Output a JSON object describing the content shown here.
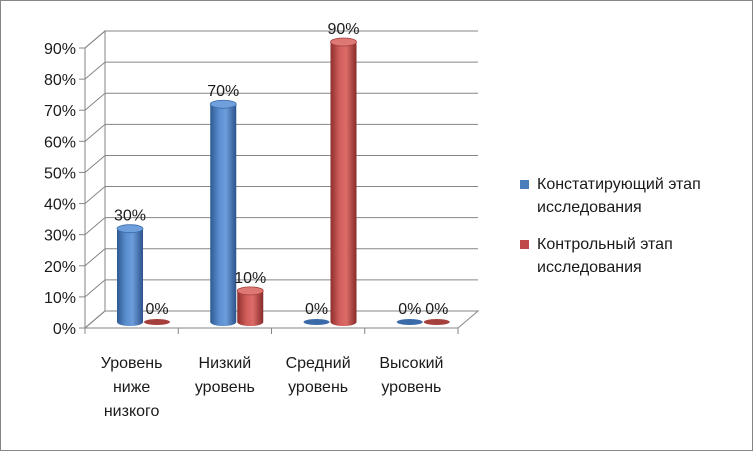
{
  "chart_data": {
    "type": "bar",
    "title": "",
    "xlabel": "",
    "ylabel": "",
    "ylim": [
      0,
      0.9
    ],
    "yticks": [
      "0%",
      "10%",
      "20%",
      "30%",
      "40%",
      "50%",
      "60%",
      "70%",
      "80%",
      "90%"
    ],
    "grid": true,
    "legend_position": "right",
    "categories": [
      [
        "Уровень",
        "ниже",
        "низкого"
      ],
      [
        "Низкий",
        "уровень"
      ],
      [
        "Средний",
        "уровень"
      ],
      [
        "Высокий",
        "уровень"
      ]
    ],
    "series": [
      {
        "name": "Констатирующий этап исследования",
        "color": "#4a7ebb",
        "values": [
          0.3,
          0.7,
          0.0,
          0.0
        ],
        "labels": [
          "30%",
          "70%",
          "0%",
          "0%"
        ]
      },
      {
        "name": "Контрольный этап исследования",
        "color": "#be4b48",
        "values": [
          0.0,
          0.1,
          0.9,
          0.0
        ],
        "labels": [
          "0%",
          "10%",
          "90%",
          "0%"
        ]
      }
    ]
  }
}
